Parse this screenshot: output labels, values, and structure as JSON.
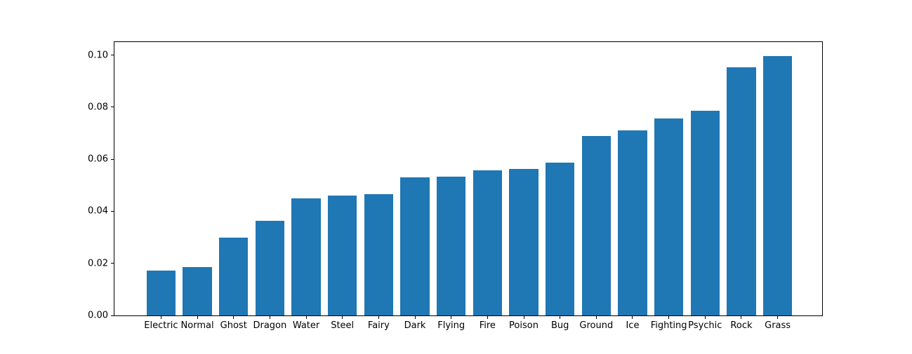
{
  "chart_data": {
    "type": "bar",
    "title": "",
    "xlabel": "",
    "ylabel": "",
    "categories": [
      "Electric",
      "Normal",
      "Ghost",
      "Dragon",
      "Water",
      "Steel",
      "Fairy",
      "Dark",
      "Flying",
      "Fire",
      "Poison",
      "Bug",
      "Ground",
      "Ice",
      "Fighting",
      "Psychic",
      "Rock",
      "Grass"
    ],
    "values": [
      0.0173,
      0.0186,
      0.03,
      0.0363,
      0.0449,
      0.0461,
      0.0467,
      0.053,
      0.0533,
      0.0557,
      0.0562,
      0.0586,
      0.0688,
      0.0711,
      0.0757,
      0.0787,
      0.0953,
      0.0996
    ],
    "ylim": [
      0,
      0.105
    ],
    "yticks": [
      0,
      0.02,
      0.04,
      0.06,
      0.08,
      0.1
    ],
    "ytick_labels": [
      "0.00",
      "0.02",
      "0.04",
      "0.06",
      "0.08",
      "0.10"
    ],
    "bar_color": "#1f77b4",
    "grid": false,
    "legend_position": "none",
    "bars_sorted": "ascending"
  },
  "colors": {
    "bar": "#1f77b4",
    "spine": "#000000",
    "tick_label": "#000000",
    "background": "#ffffff"
  }
}
